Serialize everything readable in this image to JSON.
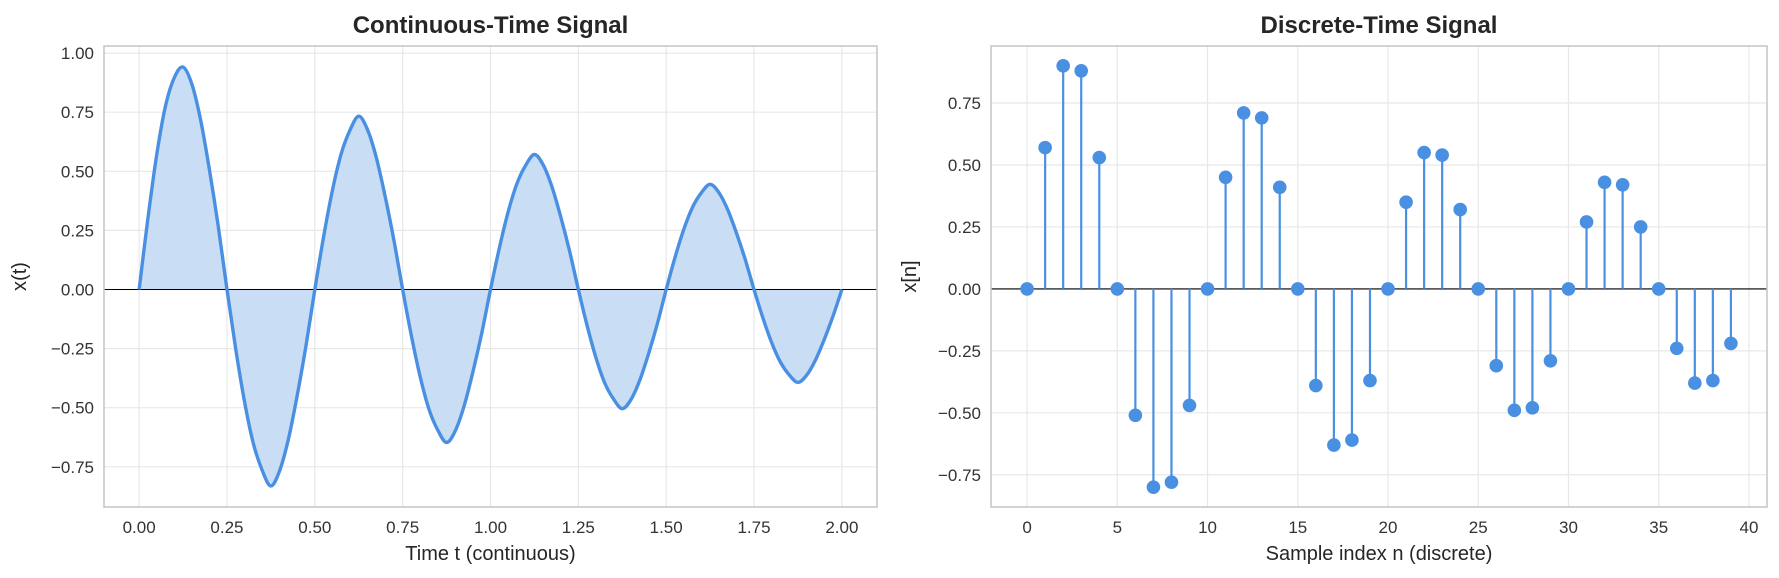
{
  "colors": {
    "line": "#4a90e2",
    "fill": "#c9ddf5",
    "zero_line": "#000000",
    "grid": "#e8e8e8"
  },
  "chart_data": [
    {
      "type": "line",
      "title": "Continuous-Time Signal",
      "xlabel": "Time t (continuous)",
      "ylabel": "x(t)",
      "xlim": [
        -0.1,
        2.1
      ],
      "ylim": [
        -0.92,
        1.03
      ],
      "xticks": [
        0.0,
        0.25,
        0.5,
        0.75,
        1.0,
        1.25,
        1.5,
        1.75,
        2.0
      ],
      "xtick_labels": [
        "0.00",
        "0.25",
        "0.50",
        "0.75",
        "1.00",
        "1.25",
        "1.50",
        "1.75",
        "2.00"
      ],
      "yticks": [
        -0.75,
        -0.5,
        -0.25,
        0.0,
        0.25,
        0.5,
        0.75,
        1.0
      ],
      "ytick_labels": [
        "−0.75",
        "−0.50",
        "−0.25",
        "0.00",
        "0.25",
        "0.50",
        "0.75",
        "1.00"
      ],
      "grid": true,
      "fill_under": true,
      "zero_line": true,
      "x": [
        0.0,
        0.025,
        0.05,
        0.075,
        0.1,
        0.125,
        0.15,
        0.175,
        0.2,
        0.225,
        0.25,
        0.275,
        0.3,
        0.325,
        0.35,
        0.375,
        0.4,
        0.425,
        0.45,
        0.475,
        0.5,
        0.525,
        0.55,
        0.575,
        0.6,
        0.625,
        0.65,
        0.675,
        0.7,
        0.725,
        0.75,
        0.775,
        0.8,
        0.825,
        0.85,
        0.875,
        0.9,
        0.925,
        0.95,
        0.975,
        1.0,
        1.025,
        1.05,
        1.075,
        1.1,
        1.125,
        1.15,
        1.175,
        1.2,
        1.225,
        1.25,
        1.275,
        1.3,
        1.325,
        1.35,
        1.375,
        1.4,
        1.425,
        1.45,
        1.475,
        1.5,
        1.525,
        1.55,
        1.575,
        1.6,
        1.625,
        1.65,
        1.675,
        1.7,
        1.725,
        1.75,
        1.775,
        1.8,
        1.825,
        1.85,
        1.875,
        1.9,
        1.925,
        1.95,
        1.975,
        2.0
      ],
      "y": [
        0.0,
        0.301,
        0.57,
        0.776,
        0.896,
        0.941,
        0.869,
        0.717,
        0.507,
        0.269,
        0.0,
        -0.253,
        -0.475,
        -0.651,
        -0.764,
        -0.831,
        -0.766,
        -0.632,
        -0.447,
        -0.237,
        0.0,
        0.223,
        0.419,
        0.574,
        0.674,
        0.733,
        0.676,
        0.558,
        0.395,
        0.209,
        0.0,
        -0.197,
        -0.37,
        -0.507,
        -0.595,
        -0.647,
        -0.597,
        -0.492,
        -0.348,
        -0.185,
        0.0,
        0.174,
        0.327,
        0.447,
        0.525,
        0.571,
        0.527,
        0.434,
        0.307,
        0.163,
        0.0,
        -0.153,
        -0.288,
        -0.395,
        -0.463,
        -0.504,
        -0.465,
        -0.383,
        -0.271,
        -0.144,
        0.0,
        0.135,
        0.254,
        0.348,
        0.409,
        0.445,
        0.41,
        0.338,
        0.239,
        0.127,
        0.0,
        -0.119,
        -0.224,
        -0.307,
        -0.361,
        -0.393,
        -0.362,
        -0.298,
        -0.211,
        -0.112,
        0.0
      ]
    },
    {
      "type": "stem",
      "title": "Discrete-Time Signal",
      "xlabel": "Sample index n (discrete)",
      "ylabel": "x[n]",
      "xlim": [
        -2,
        41
      ],
      "ylim": [
        -0.88,
        0.98
      ],
      "xticks": [
        0,
        5,
        10,
        15,
        20,
        25,
        30,
        35,
        40
      ],
      "xtick_labels": [
        "0",
        "5",
        "10",
        "15",
        "20",
        "25",
        "30",
        "35",
        "40"
      ],
      "yticks": [
        -0.75,
        -0.5,
        -0.25,
        0.0,
        0.25,
        0.5,
        0.75
      ],
      "ytick_labels": [
        "−0.75",
        "−0.50",
        "−0.25",
        "0.00",
        "0.25",
        "0.50",
        "0.75"
      ],
      "grid": true,
      "zero_line": true,
      "x": [
        0,
        1,
        2,
        3,
        4,
        5,
        6,
        7,
        8,
        9,
        10,
        11,
        12,
        13,
        14,
        15,
        16,
        17,
        18,
        19,
        20,
        21,
        22,
        23,
        24,
        25,
        26,
        27,
        28,
        29,
        30,
        31,
        32,
        33,
        34,
        35,
        36,
        37,
        38,
        39
      ],
      "y": [
        0.0,
        0.57,
        0.9,
        0.88,
        0.53,
        0.0,
        -0.51,
        -0.8,
        -0.78,
        -0.47,
        0.0,
        0.45,
        0.71,
        0.69,
        0.41,
        0.0,
        -0.39,
        -0.63,
        -0.61,
        -0.37,
        0.0,
        0.35,
        0.55,
        0.54,
        0.32,
        0.0,
        -0.31,
        -0.49,
        -0.48,
        -0.29,
        0.0,
        0.27,
        0.43,
        0.42,
        0.25,
        0.0,
        -0.24,
        -0.38,
        -0.37,
        -0.22
      ]
    }
  ]
}
